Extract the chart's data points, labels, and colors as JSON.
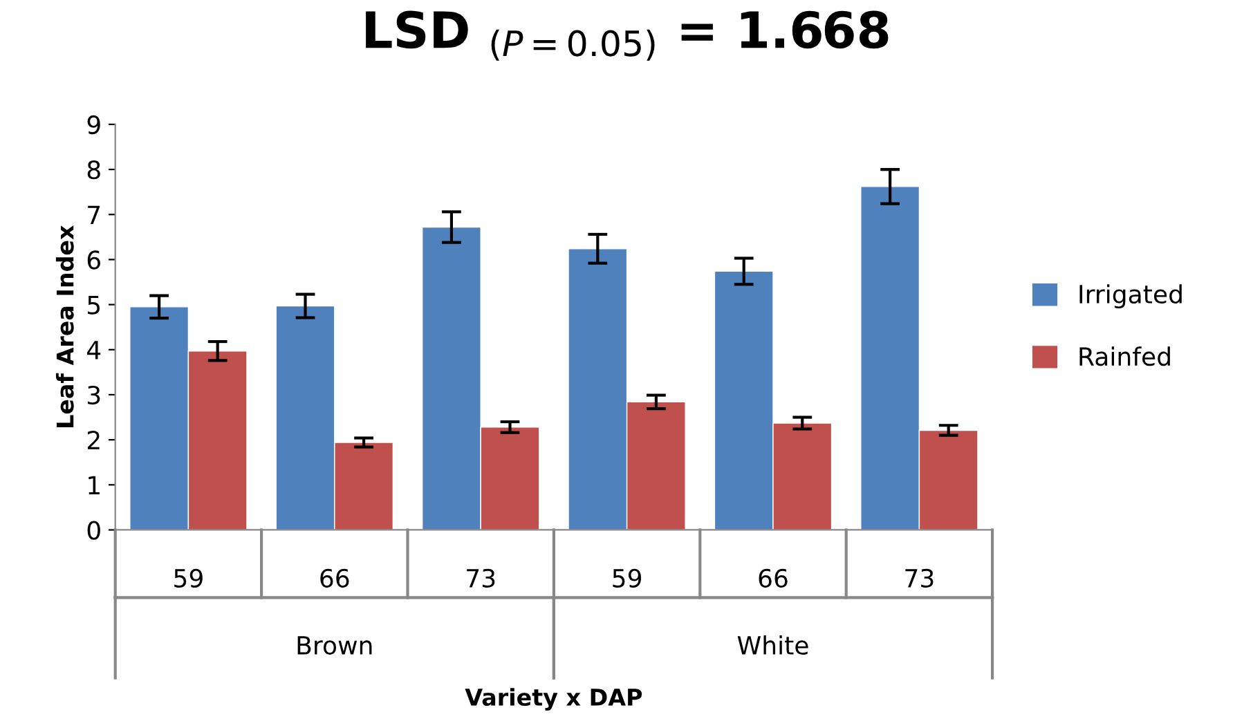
{
  "chart_data": {
    "type": "bar",
    "title": "LSD $_{(P=0.05)}$ = 1.668",
    "xlabel": "Variety x DAP",
    "ylabel": "Leaf Area Index",
    "categories": [
      "59",
      "66",
      "73",
      "59",
      "66",
      "73"
    ],
    "annotations": [
      "Brown",
      "White"
    ],
    "series": [
      {
        "name": "Irrigated",
        "color": "#4f81bd",
        "values": [
          4.95,
          4.97,
          6.72,
          6.24,
          5.74,
          7.62
        ],
        "errors": [
          0.25,
          0.26,
          0.34,
          0.32,
          0.29,
          0.38
        ]
      },
      {
        "name": "Rainfed",
        "color": "#c0504d",
        "values": [
          3.97,
          1.94,
          2.28,
          2.84,
          2.37,
          2.21
        ],
        "errors": [
          0.21,
          0.1,
          0.12,
          0.15,
          0.13,
          0.11
        ]
      }
    ],
    "ylim": [
      0,
      9
    ],
    "yticks": [
      0,
      1,
      2,
      3,
      4,
      5,
      6,
      7,
      8,
      9
    ],
    "grid": false,
    "legend": "right"
  }
}
